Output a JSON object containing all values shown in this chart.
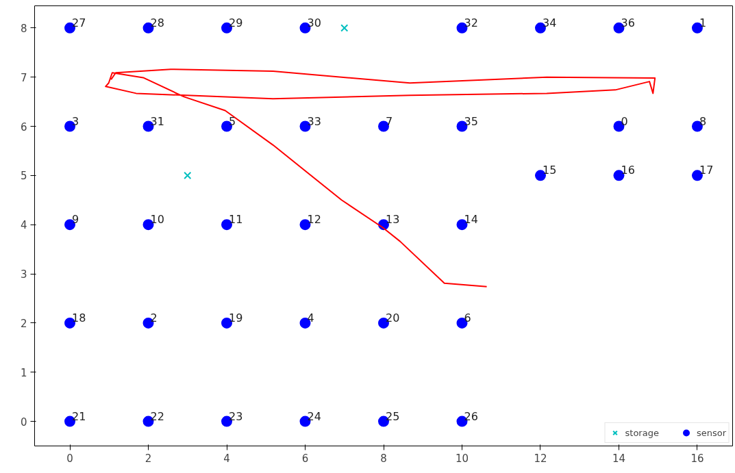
{
  "chart_data": {
    "type": "scatter",
    "xlim": [
      -0.9,
      16.9
    ],
    "ylim": [
      -0.5,
      8.45
    ],
    "xticks": [
      0,
      2,
      4,
      6,
      8,
      10,
      12,
      14,
      16
    ],
    "yticks": [
      0,
      1,
      2,
      3,
      4,
      5,
      6,
      7,
      8
    ],
    "grid": false,
    "legend": "bottom right",
    "series": [
      {
        "name": "storage",
        "type": "scatter",
        "marker": "cross",
        "color": "#00bfbf",
        "x": [
          7,
          3
        ],
        "values": [
          8,
          5
        ]
      },
      {
        "name": "sensor",
        "type": "scatter",
        "marker": "circle",
        "color": "#0000ff",
        "x": [
          0,
          2,
          4,
          6,
          10,
          12,
          14,
          16,
          0,
          2,
          4,
          6,
          8,
          10,
          14,
          16,
          12,
          14,
          16,
          0,
          2,
          4,
          6,
          8,
          10,
          0,
          2,
          4,
          6,
          8,
          10,
          0,
          2,
          4,
          6,
          8,
          10
        ],
        "values": [
          8,
          8,
          8,
          8,
          8,
          8,
          8,
          8,
          6,
          6,
          6,
          6,
          6,
          6,
          6,
          6,
          5,
          5,
          5,
          4,
          4,
          4,
          4,
          4,
          4,
          2,
          2,
          2,
          2,
          2,
          2,
          0,
          0,
          0,
          0,
          0,
          0
        ]
      },
      {
        "type": "line",
        "color": "#ff0000",
        "line_style": "solid",
        "x": [
          10.63,
          9.55,
          8.42,
          7.98,
          6.93,
          5.18,
          3.96,
          2.91,
          1.87,
          1.08,
          0.99,
          0.91,
          1.69,
          5.18,
          8.67,
          12.16,
          13.91,
          14.78,
          14.87,
          14.92,
          12.16,
          8.67,
          5.18,
          2.57,
          1.17,
          1.05
        ],
        "values": [
          2.74,
          2.81,
          3.66,
          3.94,
          4.5,
          5.62,
          6.32,
          6.6,
          6.99,
          7.09,
          6.88,
          6.81,
          6.67,
          6.56,
          6.63,
          6.67,
          6.74,
          6.91,
          6.67,
          6.98,
          7.0,
          6.88,
          7.12,
          7.16,
          7.09,
          6.95
        ]
      }
    ],
    "annotations": [
      {
        "text": "27",
        "x": 0,
        "y": 8
      },
      {
        "text": "28",
        "x": 2,
        "y": 8
      },
      {
        "text": "29",
        "x": 4,
        "y": 8
      },
      {
        "text": "30",
        "x": 6,
        "y": 8
      },
      {
        "text": "32",
        "x": 10,
        "y": 8
      },
      {
        "text": "34",
        "x": 12,
        "y": 8
      },
      {
        "text": "36",
        "x": 14,
        "y": 8
      },
      {
        "text": "1",
        "x": 16,
        "y": 8
      },
      {
        "text": "3",
        "x": 0,
        "y": 6
      },
      {
        "text": "31",
        "x": 2,
        "y": 6
      },
      {
        "text": "5",
        "x": 4,
        "y": 6
      },
      {
        "text": "33",
        "x": 6,
        "y": 6
      },
      {
        "text": "7",
        "x": 8,
        "y": 6
      },
      {
        "text": "35",
        "x": 10,
        "y": 6
      },
      {
        "text": "0",
        "x": 14,
        "y": 6
      },
      {
        "text": "8",
        "x": 16,
        "y": 6
      },
      {
        "text": "15",
        "x": 12,
        "y": 5
      },
      {
        "text": "16",
        "x": 14,
        "y": 5
      },
      {
        "text": "17",
        "x": 16,
        "y": 5
      },
      {
        "text": "9",
        "x": 0,
        "y": 4
      },
      {
        "text": "10",
        "x": 2,
        "y": 4
      },
      {
        "text": "11",
        "x": 4,
        "y": 4
      },
      {
        "text": "12",
        "x": 6,
        "y": 4
      },
      {
        "text": "13",
        "x": 8,
        "y": 4
      },
      {
        "text": "14",
        "x": 10,
        "y": 4
      },
      {
        "text": "18",
        "x": 0,
        "y": 2
      },
      {
        "text": "2",
        "x": 2,
        "y": 2
      },
      {
        "text": "19",
        "x": 4,
        "y": 2
      },
      {
        "text": "4",
        "x": 6,
        "y": 2
      },
      {
        "text": "20",
        "x": 8,
        "y": 2
      },
      {
        "text": "6",
        "x": 10,
        "y": 2
      },
      {
        "text": "21",
        "x": 0,
        "y": 0
      },
      {
        "text": "22",
        "x": 2,
        "y": 0
      },
      {
        "text": "23",
        "x": 4,
        "y": 0
      },
      {
        "text": "24",
        "x": 6,
        "y": 0
      },
      {
        "text": "25",
        "x": 8,
        "y": 0
      },
      {
        "text": "26",
        "x": 10,
        "y": 0
      }
    ]
  }
}
